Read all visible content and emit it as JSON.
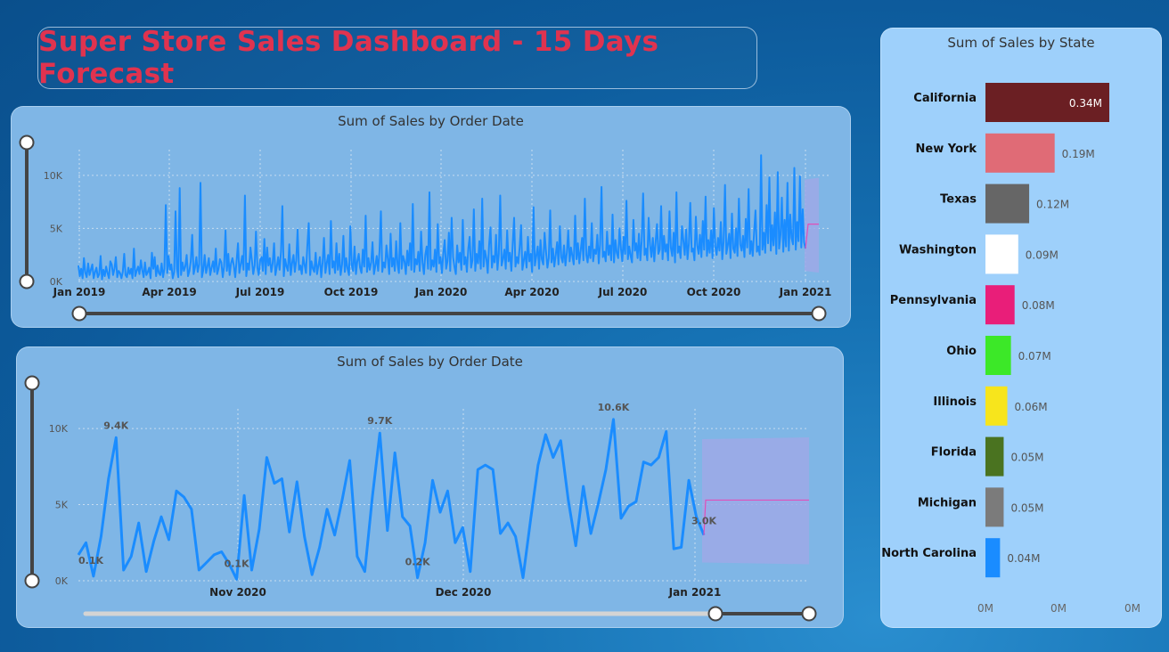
{
  "title": "Super Store Sales Dashboard - 15 Days Forecast",
  "colors": {
    "line": "#1a8cff",
    "forecast_band": "#9ea9e6",
    "forecast_line": "#e04fb8",
    "title": "#e0334f"
  },
  "chart_data": [
    {
      "id": "top",
      "type": "line",
      "title": "Sum of Sales by Order Date",
      "xlabel": "",
      "ylabel": "",
      "y_ticks": [
        "0K",
        "5K",
        "10K"
      ],
      "ylim": [
        0,
        12000
      ],
      "x_ticks": [
        "Jan 2019",
        "Apr 2019",
        "Jul 2019",
        "Oct 2019",
        "Jan 2020",
        "Apr 2020",
        "Jul 2020",
        "Oct 2020",
        "Jan 2021"
      ],
      "xlim": [
        "2019-01-01",
        "2021-01-03"
      ],
      "series": [
        {
          "values": [
            1500,
            500,
            1200,
            300,
            2200,
            800,
            400,
            1700,
            600,
            1100,
            1600,
            300,
            900,
            1300,
            400,
            700,
            2400,
            200,
            1100,
            500,
            1400,
            800,
            300,
            1900,
            1600,
            600,
            1200,
            2300,
            400,
            1000,
            800,
            300,
            900,
            2600,
            600,
            400,
            1300,
            700,
            1200,
            300,
            3100,
            500,
            1000,
            1400,
            700,
            2000,
            1100,
            400,
            1800,
            600,
            900,
            1300,
            300,
            2700,
            1200,
            2300,
            500,
            1500,
            800,
            600,
            1700,
            400,
            1200,
            7200,
            800,
            2400,
            1100,
            1600,
            300,
            900,
            6600,
            1200,
            400,
            8800,
            600,
            1800,
            1000,
            1400,
            2500,
            500,
            1000,
            1900,
            4400,
            700,
            1300,
            2300,
            900,
            1600,
            9300,
            400,
            1100,
            2500,
            800,
            1400,
            2200,
            600,
            1300,
            1900,
            900,
            3100,
            700,
            1200,
            2100,
            1800,
            400,
            1400,
            4800,
            1000,
            2600,
            600,
            1700,
            2200,
            1500,
            400,
            1900,
            3600,
            800,
            1600,
            2400,
            1100,
            8100,
            500,
            1700,
            1100,
            3200,
            2000,
            700,
            1500,
            4700,
            1300,
            600,
            2000,
            2300,
            1000,
            4000,
            700,
            3200,
            1500,
            2200,
            900,
            1700,
            3600,
            600,
            1400,
            2300,
            1100,
            2800,
            7100,
            500,
            2100,
            1400,
            1000,
            3500,
            600,
            1700,
            2500,
            900,
            2000,
            4900,
            1100,
            1500,
            700,
            2300,
            1600,
            800,
            3300,
            5500,
            600,
            1900,
            1200,
            900,
            2700,
            700,
            1500,
            2300,
            400,
            1800,
            4100,
            800,
            1700,
            2500,
            700,
            5700,
            1300,
            1900,
            800,
            3600,
            1100,
            2600,
            600,
            1600,
            4300,
            900,
            2200,
            1200,
            600,
            5200,
            1500,
            1000,
            3300,
            700,
            1900,
            2600,
            1300,
            800,
            3000,
            1400,
            6200,
            900,
            2200,
            1100,
            1800,
            3700,
            700,
            1500,
            2400,
            1000,
            2800,
            6600,
            900,
            1800,
            1300,
            3400,
            2100,
            700,
            4500,
            1400,
            2200,
            1000,
            3800,
            1600,
            800,
            5500,
            1200,
            2400,
            1900,
            700,
            2900,
            1500,
            3600,
            1100,
            7300,
            900,
            2100,
            1600,
            2800,
            1000,
            4700,
            1800,
            700,
            2500,
            3300,
            1200,
            8400,
            1100,
            2000,
            1400,
            3000,
            900,
            5400,
            1700,
            2300,
            800,
            2700,
            3900,
            1200,
            1900,
            4600,
            1000,
            6000,
            2300,
            1400,
            700,
            3400,
            1800,
            2700,
            1100,
            5800,
            1600,
            2300,
            900,
            3100,
            4200,
            1300,
            2000,
            6800,
            1000,
            2600,
            1700,
            3800,
            1200,
            7800,
            1400,
            2900,
            2200,
            800,
            3400,
            5100,
            1300,
            2400,
            1800,
            4400,
            1100,
            2600,
            8100,
            1500,
            2100,
            3000,
            1200,
            4800,
            1900,
            2700,
            1000,
            3500,
            6000,
            1400,
            2300,
            1700,
            3200,
            5300,
            1100,
            2000,
            2800,
            1300,
            4200,
            1900,
            2600,
            900,
            7000,
            1500,
            2400,
            3300,
            1200,
            3900,
            2100,
            1600,
            4600,
            2800,
            1300,
            2200,
            6700,
            1800,
            3100,
            1400,
            2500,
            3700,
            1600,
            5200,
            2300,
            1800,
            3400,
            1500,
            2700,
            4800,
            1900,
            3200,
            2400,
            1600,
            6200,
            2100,
            3600,
            1700,
            2900,
            4100,
            2000,
            7800,
            2500,
            1800,
            3300,
            2200,
            5500,
            1900,
            3000,
            2600,
            4400,
            1700,
            3500,
            8900,
            2300,
            2800,
            1900,
            4700,
            2500,
            3400,
            2000,
            6300,
            1800,
            3900,
            2700,
            2200,
            5000,
            3100,
            1900,
            4200,
            2600,
            7600,
            2100,
            3300,
            2400,
            1800,
            5800,
            2900,
            3600,
            2200,
            4500,
            2000,
            3800,
            8300,
            2500,
            3100,
            2000,
            6000,
            3400,
            2300,
            4100,
            1900,
            3700,
            5400,
            2600,
            3000,
            7100,
            2100,
            4300,
            2800,
            3500,
            2000,
            6600,
            3200,
            2400,
            4600,
            1800,
            8400,
            2700,
            3300,
            2200,
            5200,
            3800,
            2500,
            4900,
            2100,
            3600,
            7400,
            2800,
            3100,
            2000,
            6100,
            3400,
            2600,
            4400,
            2300,
            5700,
            3000,
            8000,
            2400,
            3900,
            2700,
            4800,
            2200,
            6900,
            3300,
            2500,
            4100,
            2900,
            5600,
            2100,
            3700,
            9100,
            2600,
            3400,
            4500,
            2200,
            6400,
            3100,
            2700,
            5000,
            2400,
            7800,
            3500,
            2900,
            4300,
            2300,
            5900,
            3200,
            8700,
            2600,
            3800,
            2400,
            4700,
            6700,
            2800,
            3300,
            2500,
            11900,
            3000,
            4600,
            2700,
            7200,
            3600,
            9800,
            2900,
            5300,
            3400,
            6500,
            2600,
            10300,
            3100,
            4400,
            7900,
            2800,
            5800,
            3300,
            9300,
            2900,
            6300,
            4100,
            3500,
            10700,
            3000,
            5600,
            3800,
            9900,
            3200,
            6800,
            3700,
            3100
          ]
        }
      ],
      "forecast": {
        "value": 5400,
        "lower": 1000,
        "upper": 9600,
        "days": 15
      }
    },
    {
      "id": "bottom",
      "type": "line",
      "title": "Sum of Sales by Order Date",
      "xlabel": "",
      "ylabel": "",
      "y_ticks": [
        "0K",
        "5K",
        "10K"
      ],
      "ylim": [
        0,
        11000
      ],
      "x_ticks": [
        "Nov 2020",
        "Dec 2020",
        "Jan 2021"
      ],
      "xlim": [
        "2020-10-10",
        "2021-01-15"
      ],
      "data_labels": [
        "9.4K",
        "0.1K",
        "9.7K",
        "0.1K",
        "0.2K",
        "10.6K",
        "3.0K"
      ],
      "series": [
        {
          "values": [
            1700,
            2500,
            300,
            2900,
            6700,
            9400,
            700,
            1600,
            3800,
            600,
            2600,
            4200,
            2700,
            5900,
            5500,
            4700,
            700,
            1200,
            1700,
            1900,
            1100,
            100,
            5600,
            700,
            3400,
            8100,
            6400,
            6700,
            3200,
            6500,
            2900,
            400,
            2200,
            4700,
            3000,
            5300,
            7900,
            1600,
            600,
            5500,
            9700,
            3300,
            8400,
            4200,
            3600,
            200,
            2500,
            6600,
            4500,
            5900,
            2500,
            3500,
            600,
            7300,
            7600,
            7300,
            3100,
            3800,
            2900,
            200,
            4000,
            7600,
            9600,
            8100,
            9200,
            5300,
            2300,
            6200,
            3100,
            5100,
            7300,
            10600,
            4100,
            4900,
            5200,
            7800,
            7600,
            8100,
            9800,
            2100,
            2200,
            6600,
            4200,
            3000
          ]
        }
      ],
      "forecast": {
        "value": 5300,
        "lower": 1200,
        "upper": 9300,
        "days": 15
      }
    },
    {
      "id": "state",
      "type": "bar",
      "title": "Sum of Sales by State",
      "xlabel": "",
      "ylabel": "",
      "x_ticks": [
        "0M",
        "0M",
        "0M"
      ],
      "categories": [
        "California",
        "New York",
        "Texas",
        "Washington",
        "Pennsylvania",
        "Ohio",
        "Illinois",
        "Florida",
        "Michigan",
        "North Carolina"
      ],
      "values": [
        0.34,
        0.19,
        0.12,
        0.09,
        0.08,
        0.07,
        0.06,
        0.05,
        0.05,
        0.04
      ],
      "value_labels": [
        "0.34M",
        "0.19M",
        "0.12M",
        "0.09M",
        "0.08M",
        "0.07M",
        "0.06M",
        "0.05M",
        "0.05M",
        "0.04M"
      ],
      "bar_colors": [
        "#6b1f23",
        "#e06b76",
        "#666666",
        "#ffffff",
        "#e91e79",
        "#3ce828",
        "#f7e51c",
        "#4a7320",
        "#7b7b7b",
        "#1a8cff"
      ]
    }
  ]
}
